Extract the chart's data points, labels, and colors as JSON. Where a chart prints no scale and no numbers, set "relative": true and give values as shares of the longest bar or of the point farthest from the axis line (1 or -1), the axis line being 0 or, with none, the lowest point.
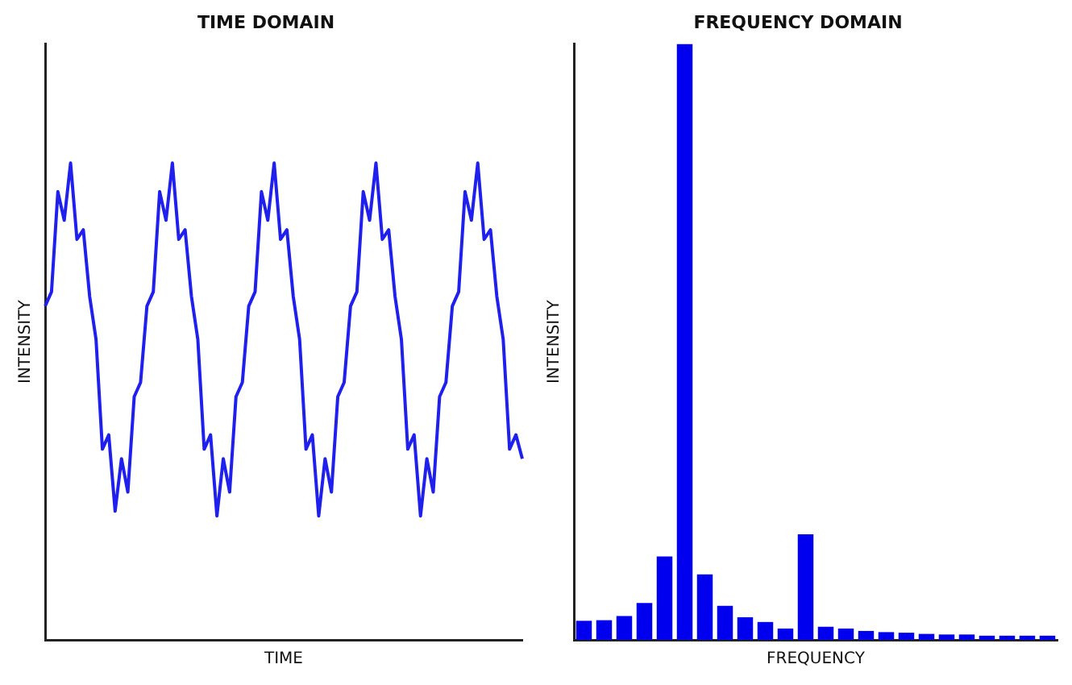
{
  "chart_data": [
    {
      "type": "line",
      "title": "TIME DOMAIN",
      "xlabel": "TIME",
      "ylabel": "INTENSITY",
      "relative": true,
      "color": "#2020ee",
      "marker": "none",
      "categories": [
        null,
        null,
        null,
        null,
        null,
        null,
        null,
        null,
        null,
        null,
        null,
        null,
        null,
        null,
        null,
        null,
        null,
        null,
        null,
        null,
        null,
        null,
        null,
        null,
        null,
        null,
        null,
        null,
        null,
        null,
        null,
        null,
        null,
        null,
        null,
        null,
        null,
        null,
        null,
        null,
        null,
        null,
        null,
        null,
        null,
        null,
        null,
        null,
        null,
        null,
        null,
        null,
        null,
        null,
        null,
        null,
        null,
        null,
        null,
        null,
        null,
        null,
        null,
        null,
        null,
        null,
        null,
        null,
        null,
        null,
        null,
        null,
        null,
        null,
        null,
        null
      ],
      "values": [
        0.7,
        0.73,
        0.94,
        0.88,
        1,
        0.84,
        0.86,
        0.72,
        0.63,
        0.4,
        0.43,
        0.27,
        0.38,
        0.31,
        0.51,
        0.54,
        0.7,
        0.73,
        0.94,
        0.88,
        1,
        0.84,
        0.86,
        0.72,
        0.63,
        0.4,
        0.43,
        0.26,
        0.38,
        0.31,
        0.51,
        0.54,
        0.7,
        0.73,
        0.94,
        0.88,
        1,
        0.84,
        0.86,
        0.72,
        0.63,
        0.4,
        0.43,
        0.26,
        0.38,
        0.31,
        0.51,
        0.54,
        0.7,
        0.73,
        0.94,
        0.88,
        1,
        0.84,
        0.86,
        0.72,
        0.63,
        0.4,
        0.43,
        0.26,
        0.38,
        0.31,
        0.51,
        0.54,
        0.7,
        0.73,
        0.94,
        0.88,
        1,
        0.84,
        0.86,
        0.72,
        0.63,
        0.4,
        0.43,
        0.38
      ]
    },
    {
      "type": "bar",
      "title": "FREQUENCY DOMAIN",
      "xlabel": "FREQUENCY",
      "ylabel": "INTENSITY",
      "relative": true,
      "color": "#0000ee",
      "categories": [
        null,
        null,
        null,
        null,
        null,
        null,
        null,
        null,
        null,
        null,
        null,
        null,
        null,
        null,
        null,
        null,
        null,
        null,
        null,
        null,
        null,
        null,
        null,
        null
      ],
      "values": [
        0.032,
        0.033,
        0.04,
        0.062,
        0.14,
        1,
        0.11,
        0.057,
        0.038,
        0.03,
        0.019,
        0.177,
        0.022,
        0.019,
        0.015,
        0.013,
        0.012,
        0.01,
        0.009,
        0.009,
        0.007,
        0.007,
        0.007,
        0.007
      ]
    }
  ]
}
